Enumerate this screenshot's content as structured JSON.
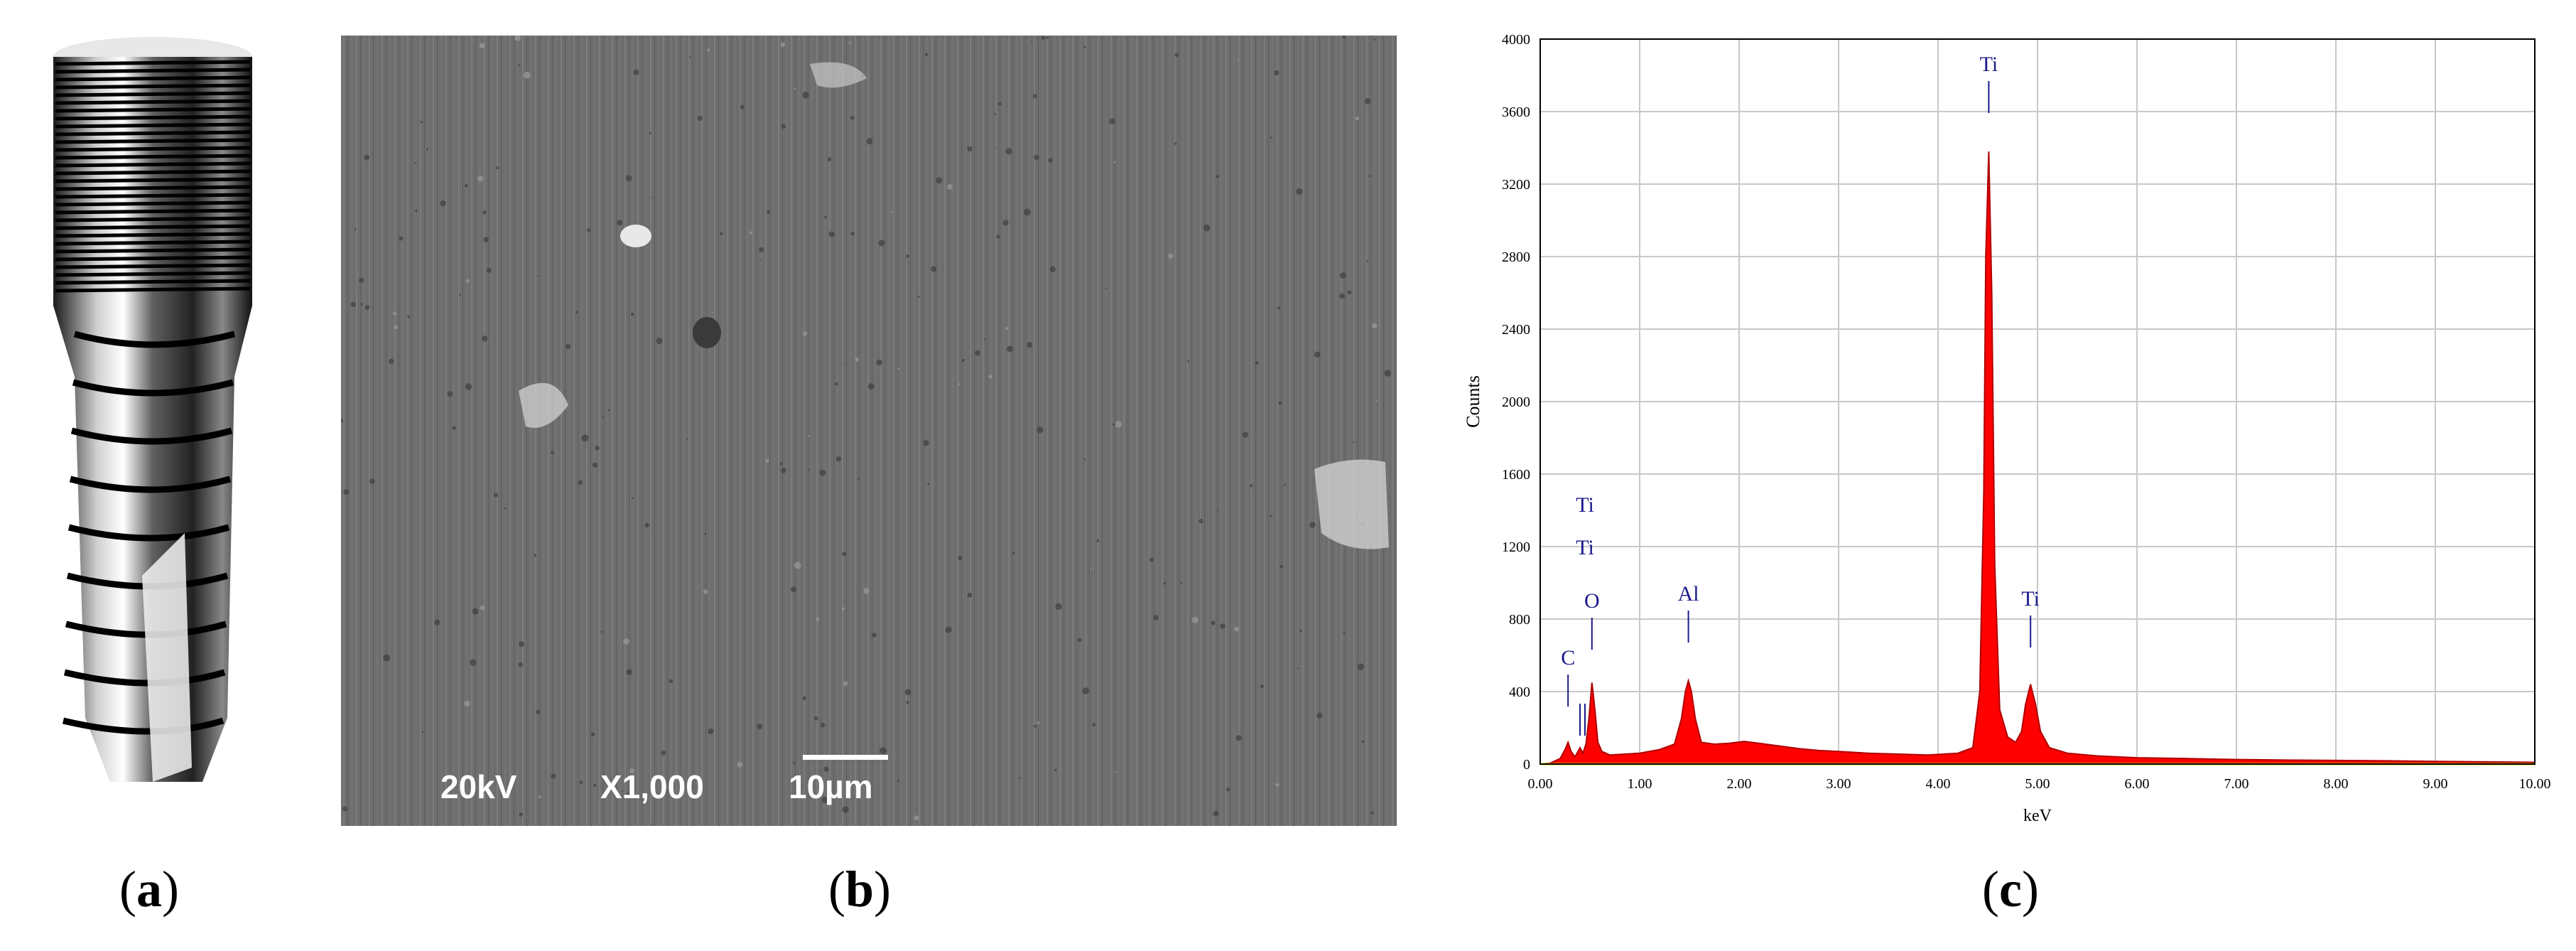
{
  "panels": {
    "a": {
      "label_open": "(",
      "label_letter": "a",
      "label_close": ")"
    },
    "b": {
      "label_open": "(",
      "label_letter": "b",
      "label_close": ")",
      "sem": {
        "voltage": "20kV",
        "magnification": "X1,000",
        "scale": "10µm"
      }
    },
    "c": {
      "label_open": "(",
      "label_letter": "c",
      "label_close": ")"
    }
  },
  "colors": {
    "spectrum_fill": "#ff0000",
    "spectrum_line": "#b00000",
    "baseline": "#e8e800",
    "peak_label": "#1a1a8c",
    "grid": "#c8c8c8"
  },
  "chart_data": {
    "type": "area",
    "title": "",
    "xlabel": "keV",
    "ylabel": "Counts",
    "xlim": [
      0,
      10
    ],
    "ylim": [
      0,
      4000
    ],
    "xticks": [
      "0.00",
      "1.00",
      "2.00",
      "3.00",
      "4.00",
      "5.00",
      "6.00",
      "7.00",
      "8.00",
      "9.00",
      "10.00"
    ],
    "yticks": [
      "0",
      "400",
      "800",
      "1200",
      "1600",
      "2000",
      "2400",
      "2800",
      "3200",
      "3600",
      "4000"
    ],
    "grid": true,
    "peaks": [
      {
        "element": "C",
        "kev": 0.28,
        "counts": 120
      },
      {
        "element": "Ti",
        "kev": 0.4,
        "counts": 90
      },
      {
        "element": "Ti",
        "kev": 0.45,
        "counts": 110
      },
      {
        "element": "O",
        "kev": 0.52,
        "counts": 450
      },
      {
        "element": "Al",
        "kev": 1.49,
        "counts": 460
      },
      {
        "element": "Ti",
        "kev": 4.51,
        "counts": 3380
      },
      {
        "element": "Ti",
        "kev": 4.93,
        "counts": 440
      }
    ],
    "series": [
      {
        "x": [
          0.0,
          0.1,
          0.2,
          0.25,
          0.28,
          0.31,
          0.35,
          0.4,
          0.43,
          0.46,
          0.49,
          0.52,
          0.55,
          0.58,
          0.62,
          0.7,
          0.85,
          1.0,
          1.2,
          1.35,
          1.42,
          1.46,
          1.49,
          1.52,
          1.56,
          1.62,
          1.75,
          1.9,
          2.05,
          2.2,
          2.4,
          2.6,
          2.8,
          3.0,
          3.3,
          3.6,
          3.9,
          4.2,
          4.35,
          4.42,
          4.46,
          4.48,
          4.51,
          4.54,
          4.57,
          4.62,
          4.7,
          4.78,
          4.84,
          4.88,
          4.93,
          4.98,
          5.03,
          5.12,
          5.3,
          5.6,
          6.0,
          6.5,
          7.0,
          7.5,
          8.0,
          8.5,
          9.0,
          9.5,
          10.0
        ],
        "y": [
          0,
          5,
          30,
          80,
          120,
          70,
          40,
          90,
          60,
          110,
          250,
          450,
          300,
          120,
          70,
          50,
          55,
          60,
          80,
          110,
          250,
          400,
          460,
          400,
          250,
          120,
          110,
          115,
          125,
          115,
          100,
          85,
          75,
          70,
          60,
          55,
          50,
          60,
          90,
          400,
          1500,
          2800,
          3380,
          2600,
          1100,
          300,
          150,
          120,
          180,
          330,
          440,
          330,
          180,
          90,
          60,
          45,
          35,
          30,
          25,
          22,
          20,
          18,
          15,
          12,
          10
        ]
      }
    ]
  }
}
